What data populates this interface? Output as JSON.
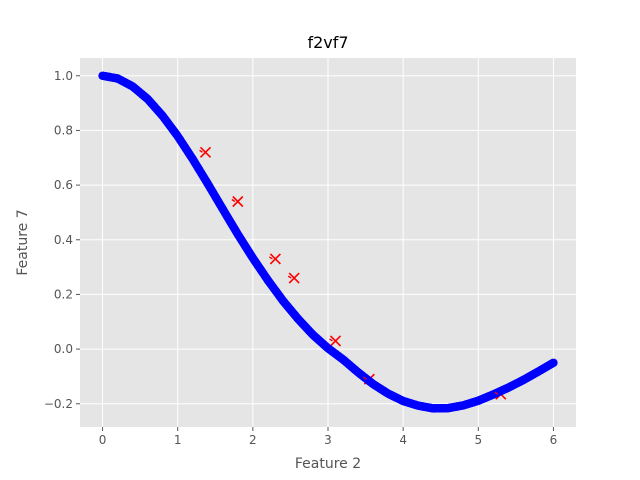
{
  "chart_data": {
    "type": "scatter",
    "title": "f2vf7",
    "xlabel": "Feature 2",
    "ylabel": "Feature 7",
    "xlim": [
      -0.3,
      6.3
    ],
    "ylim": [
      -0.285,
      1.065
    ],
    "xticks": [
      0,
      1,
      2,
      3,
      4,
      5,
      6
    ],
    "xtick_labels": [
      "0",
      "1",
      "2",
      "3",
      "4",
      "5",
      "6"
    ],
    "yticks": [
      -0.2,
      0.0,
      0.2,
      0.4,
      0.6,
      0.8,
      1.0
    ],
    "ytick_labels": [
      "−0.2",
      "0.0",
      "0.2",
      "0.4",
      "0.6",
      "0.8",
      "1.0"
    ],
    "grid": true,
    "style": "ggplot",
    "background_color": "#e5e5e5",
    "grid_color": "#ffffff",
    "series": [
      {
        "color": "#0000ff",
        "marker": "circle",
        "x": [
          0.0,
          0.2,
          0.4,
          0.6,
          0.8,
          1.0,
          1.2,
          1.4,
          1.6,
          1.8,
          2.0,
          2.2,
          2.4,
          2.6,
          2.8,
          3.0,
          3.2,
          3.4,
          3.6,
          3.8,
          4.0,
          4.2,
          4.4,
          4.6,
          4.8,
          5.0,
          5.2,
          5.4,
          5.6,
          5.8,
          6.0
        ],
        "y": [
          1.0,
          0.99,
          0.961,
          0.915,
          0.853,
          0.779,
          0.695,
          0.605,
          0.512,
          0.42,
          0.333,
          0.252,
          0.177,
          0.111,
          0.052,
          0.003,
          -0.038,
          -0.085,
          -0.128,
          -0.163,
          -0.19,
          -0.207,
          -0.217,
          -0.216,
          -0.206,
          -0.189,
          -0.166,
          -0.141,
          -0.113,
          -0.082,
          -0.05
        ]
      },
      {
        "color": "#ff0000",
        "marker": "x",
        "x": [
          1.37,
          1.8,
          2.3,
          2.55,
          3.1,
          3.55,
          5.3
        ],
        "y": [
          0.72,
          0.54,
          0.33,
          0.26,
          0.03,
          -0.11,
          -0.165
        ]
      }
    ]
  }
}
